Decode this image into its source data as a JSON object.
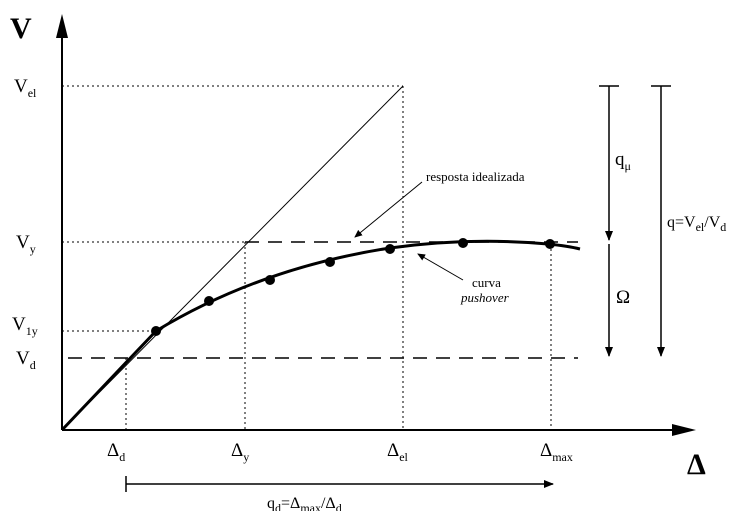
{
  "axes": {
    "y_title": "V",
    "x_title": "Δ"
  },
  "y_labels": {
    "vel": {
      "base": "V",
      "sub": "el"
    },
    "vy": {
      "base": "V",
      "sub": "y"
    },
    "v1y": {
      "base": "V",
      "sub": "1y"
    },
    "vd": {
      "base": "V",
      "sub": "d"
    }
  },
  "x_labels": {
    "dd": {
      "base": "Δ",
      "sub": "d"
    },
    "dy": {
      "base": "Δ",
      "sub": "y"
    },
    "del": {
      "base": "Δ",
      "sub": "el"
    },
    "dmax": {
      "base": "Δ",
      "sub": "max"
    }
  },
  "annotations": {
    "idealized": "resposta idealizada",
    "curve_line1": "curva",
    "curve_line2": "pushover",
    "q_mu": {
      "base": "q",
      "sub": "μ"
    },
    "omega": "Ω",
    "q_total": {
      "pre": "q=V",
      "sub1": "el",
      "mid": "/V",
      "sub2": "d"
    },
    "qd": {
      "pre": "q",
      "sub1": "d",
      "mid": "=Δ",
      "sub2": "max",
      "post": "/Δ",
      "sub3": "d"
    }
  },
  "colors": {
    "ink": "#000000",
    "background": "#ffffff"
  }
}
